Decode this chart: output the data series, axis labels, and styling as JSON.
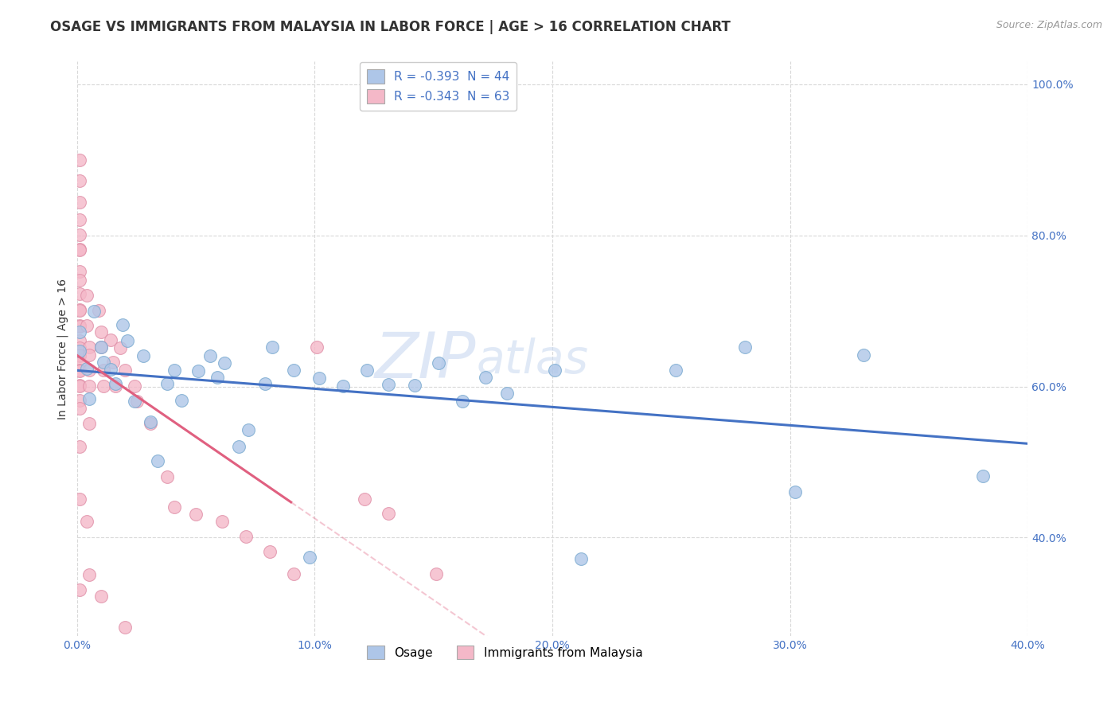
{
  "title": "OSAGE VS IMMIGRANTS FROM MALAYSIA IN LABOR FORCE | AGE > 16 CORRELATION CHART",
  "source": "Source: ZipAtlas.com",
  "ylabel": "In Labor Force | Age > 16",
  "xlabel": "",
  "xlim": [
    0.0,
    0.4
  ],
  "ylim": [
    0.27,
    1.03
  ],
  "xticks": [
    0.0,
    0.1,
    0.2,
    0.3,
    0.4
  ],
  "yticks": [
    0.4,
    0.6,
    0.8,
    1.0
  ],
  "xtick_labels": [
    "0.0%",
    "10.0%",
    "20.0%",
    "30.0%",
    "40.0%"
  ],
  "ytick_labels": [
    "40.0%",
    "60.0%",
    "80.0%",
    "100.0%"
  ],
  "legend_items": [
    {
      "color": "#aec6e8",
      "label": "R = -0.393  N = 44"
    },
    {
      "color": "#f4b8c8",
      "label": "R = -0.343  N = 63"
    }
  ],
  "osage_color": "#aec6e8",
  "malaysia_color": "#f4b8c8",
  "osage_edge_color": "#7aaad0",
  "malaysia_edge_color": "#e090a8",
  "osage_line_color": "#4472c4",
  "malaysia_line_color": "#e06080",
  "osage_scatter": [
    [
      0.001,
      0.647
    ],
    [
      0.001,
      0.672
    ],
    [
      0.004,
      0.624
    ],
    [
      0.005,
      0.584
    ],
    [
      0.007,
      0.7
    ],
    [
      0.01,
      0.652
    ],
    [
      0.011,
      0.632
    ],
    [
      0.014,
      0.623
    ],
    [
      0.016,
      0.604
    ],
    [
      0.019,
      0.682
    ],
    [
      0.021,
      0.661
    ],
    [
      0.024,
      0.581
    ],
    [
      0.028,
      0.641
    ],
    [
      0.031,
      0.553
    ],
    [
      0.034,
      0.502
    ],
    [
      0.038,
      0.604
    ],
    [
      0.041,
      0.622
    ],
    [
      0.044,
      0.582
    ],
    [
      0.051,
      0.621
    ],
    [
      0.056,
      0.641
    ],
    [
      0.059,
      0.612
    ],
    [
      0.062,
      0.631
    ],
    [
      0.068,
      0.521
    ],
    [
      0.072,
      0.543
    ],
    [
      0.079,
      0.604
    ],
    [
      0.082,
      0.652
    ],
    [
      0.091,
      0.622
    ],
    [
      0.098,
      0.374
    ],
    [
      0.102,
      0.611
    ],
    [
      0.112,
      0.601
    ],
    [
      0.122,
      0.622
    ],
    [
      0.131,
      0.603
    ],
    [
      0.142,
      0.602
    ],
    [
      0.152,
      0.631
    ],
    [
      0.162,
      0.581
    ],
    [
      0.172,
      0.612
    ],
    [
      0.181,
      0.591
    ],
    [
      0.201,
      0.622
    ],
    [
      0.212,
      0.372
    ],
    [
      0.252,
      0.622
    ],
    [
      0.281,
      0.652
    ],
    [
      0.302,
      0.461
    ],
    [
      0.331,
      0.642
    ],
    [
      0.381,
      0.482
    ]
  ],
  "malaysia_scatter": [
    [
      0.001,
      0.9
    ],
    [
      0.001,
      0.872
    ],
    [
      0.001,
      0.844
    ],
    [
      0.001,
      0.821
    ],
    [
      0.001,
      0.801
    ],
    [
      0.001,
      0.782
    ],
    [
      0.001,
      0.781
    ],
    [
      0.001,
      0.752
    ],
    [
      0.001,
      0.741
    ],
    [
      0.001,
      0.723
    ],
    [
      0.001,
      0.702
    ],
    [
      0.001,
      0.701
    ],
    [
      0.001,
      0.681
    ],
    [
      0.001,
      0.68
    ],
    [
      0.001,
      0.661
    ],
    [
      0.001,
      0.651
    ],
    [
      0.001,
      0.641
    ],
    [
      0.001,
      0.642
    ],
    [
      0.001,
      0.631
    ],
    [
      0.001,
      0.622
    ],
    [
      0.001,
      0.621
    ],
    [
      0.001,
      0.602
    ],
    [
      0.001,
      0.601
    ],
    [
      0.001,
      0.582
    ],
    [
      0.001,
      0.571
    ],
    [
      0.001,
      0.521
    ],
    [
      0.001,
      0.451
    ],
    [
      0.001,
      0.331
    ],
    [
      0.004,
      0.721
    ],
    [
      0.004,
      0.681
    ],
    [
      0.005,
      0.652
    ],
    [
      0.005,
      0.642
    ],
    [
      0.005,
      0.622
    ],
    [
      0.005,
      0.601
    ],
    [
      0.005,
      0.551
    ],
    [
      0.009,
      0.701
    ],
    [
      0.01,
      0.672
    ],
    [
      0.01,
      0.652
    ],
    [
      0.011,
      0.622
    ],
    [
      0.011,
      0.601
    ],
    [
      0.014,
      0.662
    ],
    [
      0.015,
      0.632
    ],
    [
      0.016,
      0.601
    ],
    [
      0.018,
      0.651
    ],
    [
      0.02,
      0.622
    ],
    [
      0.024,
      0.601
    ],
    [
      0.025,
      0.581
    ],
    [
      0.031,
      0.551
    ],
    [
      0.038,
      0.481
    ],
    [
      0.041,
      0.441
    ],
    [
      0.05,
      0.431
    ],
    [
      0.061,
      0.421
    ],
    [
      0.071,
      0.401
    ],
    [
      0.081,
      0.381
    ],
    [
      0.091,
      0.352
    ],
    [
      0.101,
      0.652
    ],
    [
      0.121,
      0.451
    ],
    [
      0.131,
      0.432
    ],
    [
      0.151,
      0.352
    ],
    [
      0.004,
      0.421
    ],
    [
      0.005,
      0.351
    ],
    [
      0.01,
      0.322
    ],
    [
      0.02,
      0.281
    ]
  ],
  "watermark_zip": "ZIP",
  "watermark_atlas": "atlas",
  "background_color": "#ffffff",
  "grid_color": "#d8d8d8",
  "title_fontsize": 12,
  "axis_label_fontsize": 10,
  "tick_fontsize": 10,
  "legend_fontsize": 11,
  "tick_color": "#4472c4"
}
